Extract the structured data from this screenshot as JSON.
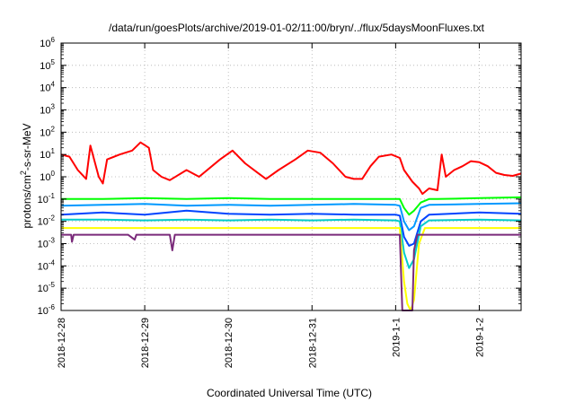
{
  "chart_data": {
    "type": "line",
    "title": "/data/run/goesPlots/archive/2019-01-02/11:00/bryn/../flux/5daysMoonFluxes.txt",
    "xlabel": "Coordinated Universal Time (UTC)",
    "ylabel_parts": [
      "protons/cm",
      "2",
      "-s-sr-MeV"
    ],
    "y_scale": "log",
    "ylim": [
      1e-06,
      1000000.0
    ],
    "xlim_days": [
      0,
      5.5
    ],
    "grid": true,
    "x_ticks": [
      {
        "day": 0,
        "label": "2018-12-28"
      },
      {
        "day": 1,
        "label": "2018-12-29"
      },
      {
        "day": 2,
        "label": "2018-12-30"
      },
      {
        "day": 3,
        "label": "2018-12-31"
      },
      {
        "day": 4,
        "label": "2019-1-1"
      },
      {
        "day": 5,
        "label": "2019-1-2"
      }
    ],
    "y_ticks": [
      {
        "exp": -6,
        "base": "10",
        "sup": "-6"
      },
      {
        "exp": -5,
        "base": "10",
        "sup": "-5"
      },
      {
        "exp": -4,
        "base": "10",
        "sup": "-4"
      },
      {
        "exp": -3,
        "base": "10",
        "sup": "-3"
      },
      {
        "exp": -2,
        "base": "10",
        "sup": "-2"
      },
      {
        "exp": -1,
        "base": "10",
        "sup": "-1"
      },
      {
        "exp": 0,
        "base": "10",
        "sup": "0"
      },
      {
        "exp": 1,
        "base": "10",
        "sup": "1"
      },
      {
        "exp": 2,
        "base": "10",
        "sup": "2"
      },
      {
        "exp": 3,
        "base": "10",
        "sup": "3"
      },
      {
        "exp": 4,
        "base": "10",
        "sup": "4"
      },
      {
        "exp": 5,
        "base": "10",
        "sup": "5"
      },
      {
        "exp": 6,
        "base": "10",
        "sup": "6"
      }
    ],
    "series": [
      {
        "color": "#ff0000",
        "points": [
          [
            0,
            10
          ],
          [
            0.1,
            8
          ],
          [
            0.2,
            2
          ],
          [
            0.3,
            0.8
          ],
          [
            0.35,
            25
          ],
          [
            0.45,
            1
          ],
          [
            0.5,
            0.5
          ],
          [
            0.55,
            6
          ],
          [
            0.7,
            10
          ],
          [
            0.85,
            15
          ],
          [
            0.95,
            35
          ],
          [
            1.05,
            20
          ],
          [
            1.1,
            2
          ],
          [
            1.2,
            1
          ],
          [
            1.3,
            0.7
          ],
          [
            1.5,
            2
          ],
          [
            1.65,
            1
          ],
          [
            1.9,
            6
          ],
          [
            2.05,
            15
          ],
          [
            2.2,
            4
          ],
          [
            2.35,
            1.5
          ],
          [
            2.45,
            0.8
          ],
          [
            2.6,
            2
          ],
          [
            2.8,
            6
          ],
          [
            2.95,
            15
          ],
          [
            3.1,
            12
          ],
          [
            3.25,
            4
          ],
          [
            3.4,
            1
          ],
          [
            3.5,
            0.8
          ],
          [
            3.6,
            0.8
          ],
          [
            3.7,
            3
          ],
          [
            3.8,
            8
          ],
          [
            3.95,
            10
          ],
          [
            4.05,
            7
          ],
          [
            4.1,
            2
          ],
          [
            4.2,
            0.6
          ],
          [
            4.28,
            0.3
          ],
          [
            4.32,
            0.17
          ],
          [
            4.4,
            0.3
          ],
          [
            4.5,
            0.25
          ],
          [
            4.55,
            10
          ],
          [
            4.6,
            1
          ],
          [
            4.7,
            2
          ],
          [
            4.8,
            3
          ],
          [
            4.9,
            5
          ],
          [
            5.0,
            4.5
          ],
          [
            5.1,
            3
          ],
          [
            5.2,
            1.5
          ],
          [
            5.3,
            1.2
          ],
          [
            5.4,
            1.1
          ],
          [
            5.5,
            1.4
          ]
        ]
      },
      {
        "color": "#00ff00",
        "points": [
          [
            0,
            0.1
          ],
          [
            0.5,
            0.1
          ],
          [
            1,
            0.11
          ],
          [
            1.5,
            0.1
          ],
          [
            2,
            0.11
          ],
          [
            2.5,
            0.1
          ],
          [
            3,
            0.1
          ],
          [
            3.5,
            0.1
          ],
          [
            4,
            0.1
          ],
          [
            4.05,
            0.1
          ],
          [
            4.1,
            0.04
          ],
          [
            4.16,
            0.02
          ],
          [
            4.22,
            0.03
          ],
          [
            4.3,
            0.07
          ],
          [
            4.4,
            0.1
          ],
          [
            4.5,
            0.1
          ],
          [
            5,
            0.11
          ],
          [
            5.5,
            0.12
          ]
        ]
      },
      {
        "color": "#0099ff",
        "points": [
          [
            0,
            0.05
          ],
          [
            0.5,
            0.055
          ],
          [
            1,
            0.06
          ],
          [
            1.5,
            0.05
          ],
          [
            2,
            0.055
          ],
          [
            2.5,
            0.05
          ],
          [
            3,
            0.055
          ],
          [
            3.5,
            0.06
          ],
          [
            4,
            0.055
          ],
          [
            4.05,
            0.05
          ],
          [
            4.1,
            0.01
          ],
          [
            4.16,
            0.004
          ],
          [
            4.22,
            0.006
          ],
          [
            4.3,
            0.04
          ],
          [
            4.4,
            0.055
          ],
          [
            5,
            0.06
          ],
          [
            5.5,
            0.065
          ]
        ]
      },
      {
        "color": "#0044ff",
        "points": [
          [
            0,
            0.02
          ],
          [
            0.5,
            0.025
          ],
          [
            1,
            0.02
          ],
          [
            1.5,
            0.03
          ],
          [
            2,
            0.022
          ],
          [
            2.5,
            0.02
          ],
          [
            3,
            0.022
          ],
          [
            3.5,
            0.02
          ],
          [
            4,
            0.02
          ],
          [
            4.05,
            0.018
          ],
          [
            4.1,
            0.002
          ],
          [
            4.16,
            0.0008
          ],
          [
            4.22,
            0.001
          ],
          [
            4.3,
            0.01
          ],
          [
            4.4,
            0.02
          ],
          [
            5,
            0.025
          ],
          [
            5.5,
            0.022
          ]
        ]
      },
      {
        "color": "#00cccc",
        "points": [
          [
            0,
            0.012
          ],
          [
            0.5,
            0.012
          ],
          [
            1,
            0.011
          ],
          [
            1.5,
            0.012
          ],
          [
            2,
            0.011
          ],
          [
            2.5,
            0.012
          ],
          [
            3,
            0.011
          ],
          [
            3.5,
            0.012
          ],
          [
            4,
            0.011
          ],
          [
            4.05,
            0.01
          ],
          [
            4.1,
            0.0004
          ],
          [
            4.16,
            8e-05
          ],
          [
            4.22,
            0.0002
          ],
          [
            4.3,
            0.006
          ],
          [
            4.4,
            0.011
          ],
          [
            5,
            0.012
          ],
          [
            5.5,
            0.011
          ]
        ]
      },
      {
        "color": "#ffff00",
        "points": [
          [
            0,
            0.005
          ],
          [
            0.5,
            0.005
          ],
          [
            1,
            0.005
          ],
          [
            1.5,
            0.005
          ],
          [
            2,
            0.005
          ],
          [
            2.5,
            0.005
          ],
          [
            3,
            0.005
          ],
          [
            3.5,
            0.005
          ],
          [
            4,
            0.005
          ],
          [
            4.05,
            0.005
          ],
          [
            4.1,
            2e-05
          ],
          [
            4.14,
            2e-06
          ],
          [
            4.18,
            1e-06
          ],
          [
            4.22,
            3e-06
          ],
          [
            4.28,
            0.001
          ],
          [
            4.35,
            0.005
          ],
          [
            5,
            0.005
          ],
          [
            5.5,
            0.005
          ]
        ]
      },
      {
        "color": "#7a2a7a",
        "points": [
          [
            0,
            0.0025
          ],
          [
            0.12,
            0.0025
          ],
          [
            0.13,
            0.0012
          ],
          [
            0.15,
            0.0025
          ],
          [
            0.8,
            0.0025
          ],
          [
            0.88,
            0.0015
          ],
          [
            0.9,
            0.0025
          ],
          [
            1.3,
            0.0025
          ],
          [
            1.33,
            0.0005
          ],
          [
            1.36,
            0.0025
          ],
          [
            2,
            0.0025
          ],
          [
            3,
            0.0025
          ],
          [
            4,
            0.0025
          ],
          [
            4.05,
            0.0025
          ],
          [
            4.08,
            1e-06
          ],
          [
            4.2,
            1e-06
          ],
          [
            4.22,
            0.0005
          ],
          [
            4.26,
            0.0025
          ],
          [
            5,
            0.0025
          ],
          [
            5.5,
            0.0025
          ]
        ]
      }
    ]
  }
}
